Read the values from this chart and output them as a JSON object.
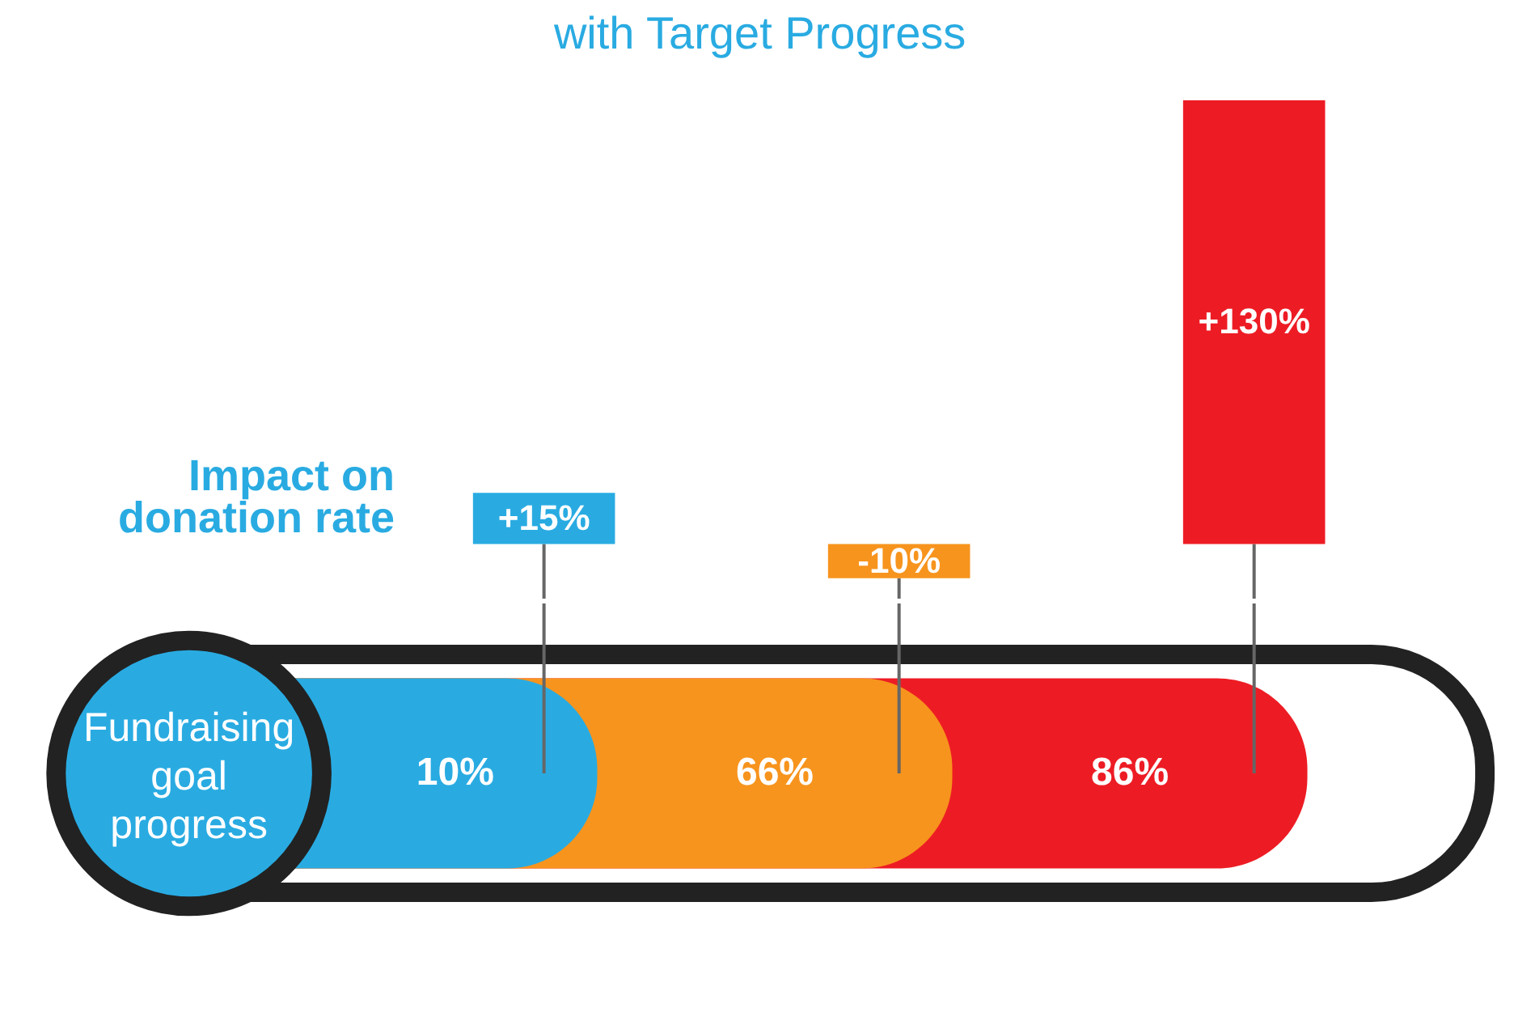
{
  "chart_data": {
    "type": "bar",
    "title": "with Target Progress",
    "ylabel": "Impact on donation rate",
    "xlabel": "Fundraising goal progress",
    "categories": [
      "10%",
      "66%",
      "86%"
    ],
    "values": [
      15,
      -10,
      130
    ],
    "colors": [
      "#29abe2",
      "#f7941d",
      "#ed1c24"
    ],
    "value_labels": [
      "+15%",
      "-10%",
      "+130%"
    ],
    "tick_labels": false
  }
}
